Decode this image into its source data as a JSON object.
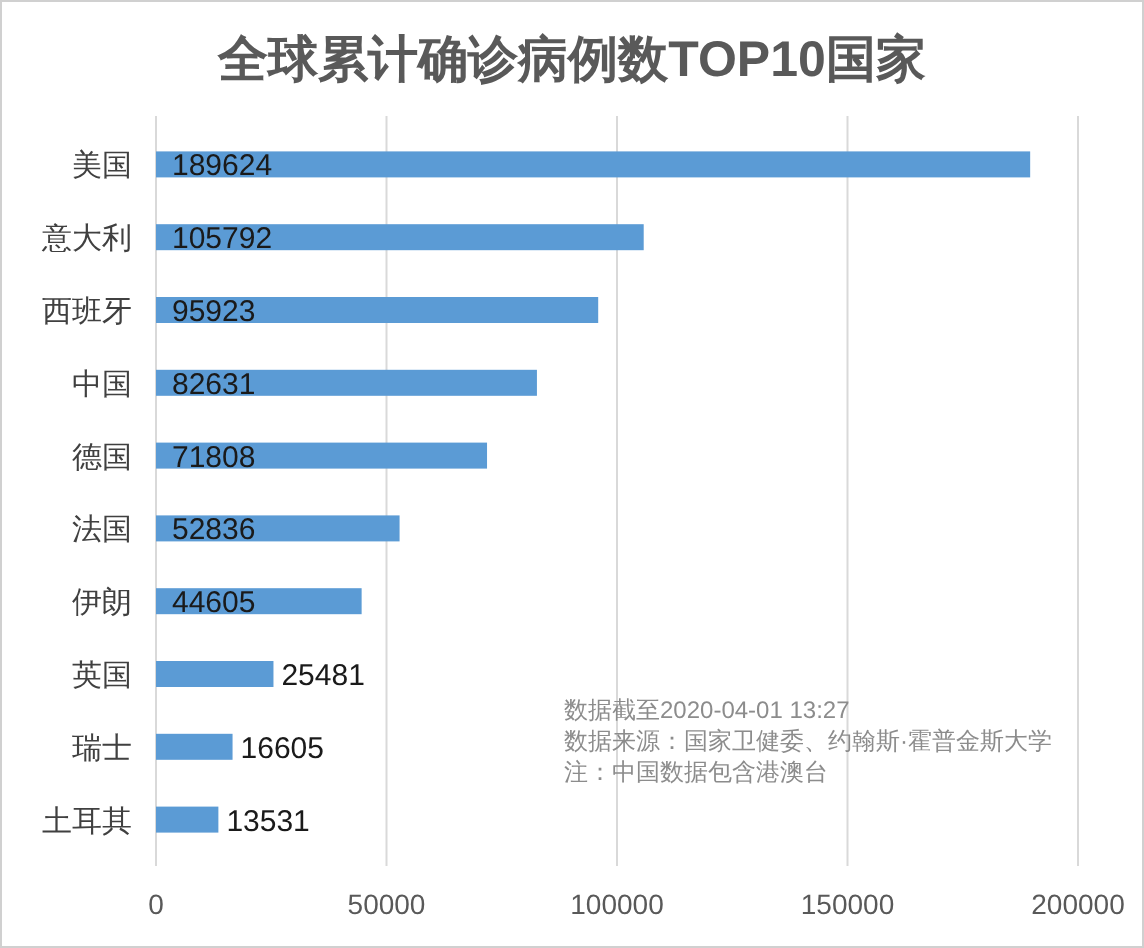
{
  "chart_data": {
    "type": "bar",
    "orientation": "horizontal",
    "title": "全球累计确诊病例数TOP10国家",
    "categories": [
      "美国",
      "意大利",
      "西班牙",
      "中国",
      "德国",
      "法国",
      "伊朗",
      "英国",
      "瑞士",
      "土耳其"
    ],
    "values": [
      189624,
      105792,
      95923,
      82631,
      71808,
      52836,
      44605,
      25481,
      16605,
      13531
    ],
    "color": "#5b9bd5",
    "data_labels": true,
    "xlim": [
      0,
      200000
    ],
    "xticks": [
      0,
      50000,
      100000,
      150000,
      200000
    ],
    "grid": "x",
    "annotations": [
      "数据截至2020-04-01 13:27",
      "数据来源：国家卫健委、约翰斯·霍普金斯大学",
      "注：中国数据包含港澳台"
    ]
  }
}
